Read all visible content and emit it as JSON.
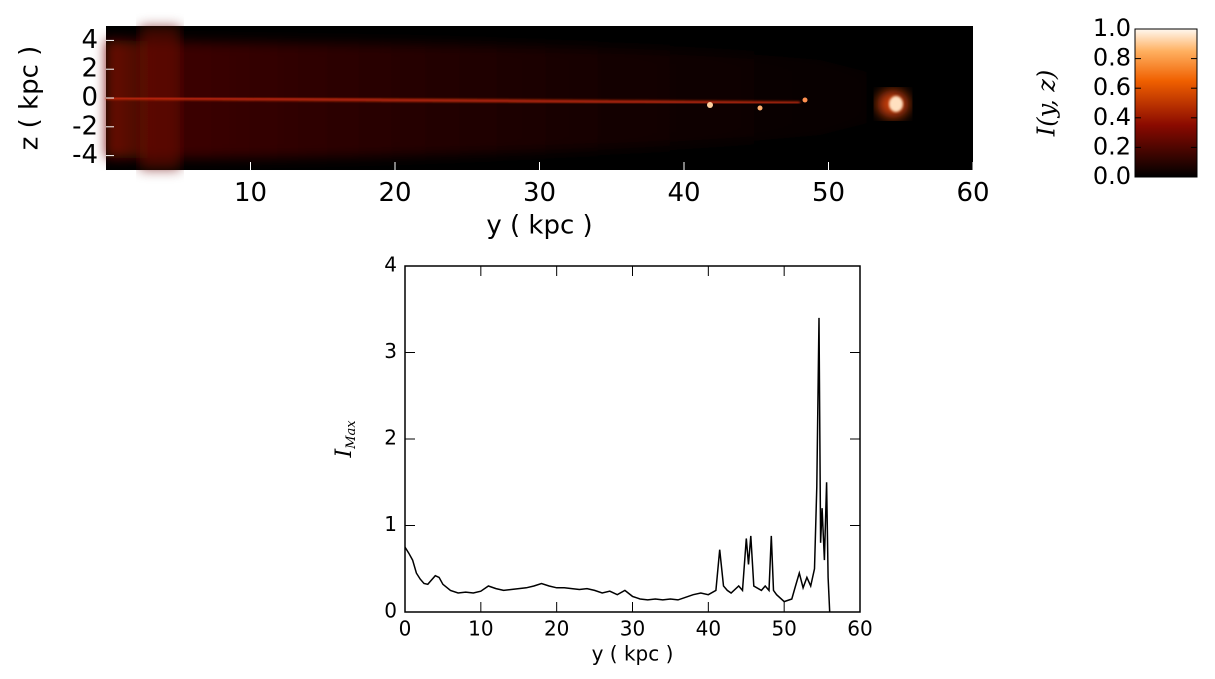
{
  "chart_data": [
    {
      "type": "heatmap",
      "xlabel": "y ( kpc )",
      "ylabel": "z ( kpc )",
      "xlim": [
        0,
        60
      ],
      "xticks": [
        10,
        20,
        30,
        40,
        50,
        60
      ],
      "ylim": [
        -5,
        5
      ],
      "yticks": [
        4,
        2,
        0,
        -2,
        -4
      ],
      "colorbar": {
        "label": "I(y, z)",
        "lim": [
          0,
          1
        ],
        "ticks": [
          {
            "value": 0,
            "label": "0.0"
          },
          {
            "value": 0.2,
            "label": "0.2"
          },
          {
            "value": 0.4,
            "label": "0.4"
          },
          {
            "value": 0.6,
            "label": "0.6"
          },
          {
            "value": 0.8,
            "label": "0.8"
          },
          {
            "value": 1,
            "label": "1.0"
          }
        ]
      }
    },
    {
      "type": "line",
      "xlabel": "y ( kpc )",
      "ylabel": {
        "main": "I",
        "sub": "Max"
      },
      "xlim": [
        0,
        60
      ],
      "xticks": [
        0,
        10,
        20,
        30,
        40,
        50,
        60
      ],
      "ylim": [
        0,
        4
      ],
      "yticks": [
        0,
        1,
        2,
        3,
        4
      ],
      "x": [
        0,
        0.5,
        1,
        1.5,
        2,
        2.5,
        3,
        3.5,
        4,
        4.5,
        5,
        6,
        7,
        8,
        9,
        10,
        11,
        12,
        13,
        14,
        15,
        16,
        17,
        18,
        19,
        20,
        21,
        22,
        23,
        24,
        25,
        26,
        27,
        28,
        29,
        30,
        31,
        32,
        33,
        34,
        35,
        36,
        37,
        38,
        39,
        40,
        41,
        41.5,
        42,
        42.5,
        43,
        44,
        44.5,
        45,
        45.3,
        45.6,
        46,
        47,
        47.5,
        48,
        48.3,
        48.6,
        49,
        50,
        51,
        51.5,
        52,
        52.5,
        53,
        53.5,
        54,
        54.3,
        54.6,
        54.8,
        55,
        55.3,
        55.6,
        55.8,
        56
      ],
      "values": [
        0.75,
        0.68,
        0.6,
        0.45,
        0.38,
        0.33,
        0.32,
        0.37,
        0.42,
        0.4,
        0.32,
        0.25,
        0.22,
        0.23,
        0.22,
        0.24,
        0.3,
        0.27,
        0.25,
        0.26,
        0.27,
        0.28,
        0.3,
        0.33,
        0.3,
        0.28,
        0.28,
        0.27,
        0.26,
        0.27,
        0.25,
        0.22,
        0.24,
        0.2,
        0.25,
        0.18,
        0.15,
        0.14,
        0.15,
        0.14,
        0.15,
        0.14,
        0.17,
        0.2,
        0.22,
        0.2,
        0.25,
        0.72,
        0.3,
        0.25,
        0.22,
        0.3,
        0.25,
        0.85,
        0.55,
        0.88,
        0.3,
        0.25,
        0.3,
        0.25,
        0.88,
        0.25,
        0.2,
        0.12,
        0.15,
        0.3,
        0.45,
        0.28,
        0.4,
        0.3,
        0.5,
        1.45,
        3.4,
        0.8,
        1.2,
        0.6,
        1.5,
        0.4,
        0
      ],
      "color": "#000000"
    }
  ]
}
